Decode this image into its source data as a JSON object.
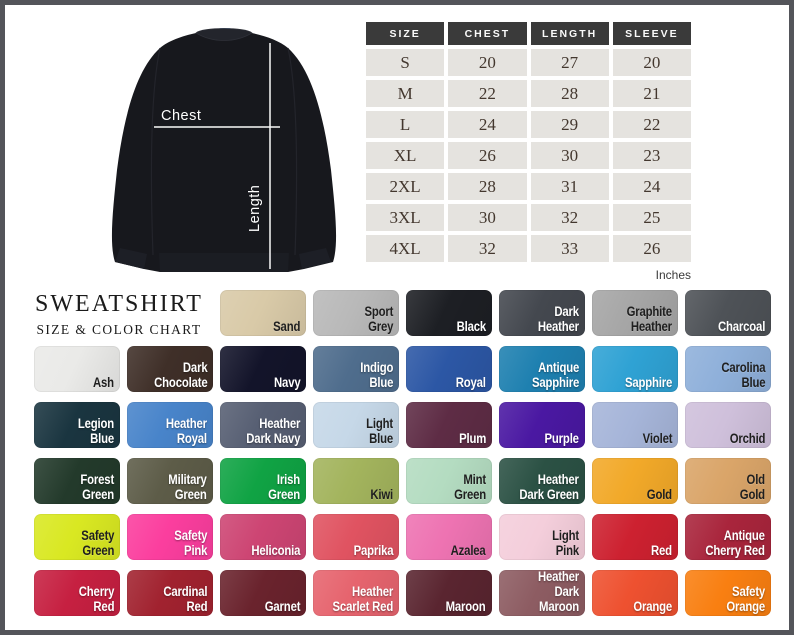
{
  "frame": {
    "border_color": "#54555a"
  },
  "title": {
    "line1": "SWEATSHIRT",
    "line2": "SIZE & COLOR CHART"
  },
  "diagram": {
    "chest_label": "Chest",
    "length_label": "Length"
  },
  "size_chart": {
    "headers": [
      "SIZE",
      "CHEST",
      "LENGTH",
      "SLEEVE"
    ],
    "rows": [
      [
        "S",
        "20",
        "27",
        "20"
      ],
      [
        "M",
        "22",
        "28",
        "21"
      ],
      [
        "L",
        "24",
        "29",
        "22"
      ],
      [
        "XL",
        "26",
        "30",
        "23"
      ],
      [
        "2XL",
        "28",
        "31",
        "24"
      ],
      [
        "3XL",
        "30",
        "32",
        "25"
      ],
      [
        "4XL",
        "32",
        "33",
        "26"
      ]
    ],
    "unit_label": "Inches",
    "header_bg": "#3a3a3a",
    "cell_bg": "#e5e3df"
  },
  "color_chart": {
    "rows": [
      {
        "offset": 2,
        "swatches": [
          {
            "name": "Sand",
            "lines": [
              "Sand"
            ],
            "hex": "#d9caa8",
            "text": "dark"
          },
          {
            "name": "Sport Grey",
            "lines": [
              "Sport",
              "Grey"
            ],
            "hex": "#b9b9b9",
            "text": "dark"
          },
          {
            "name": "Black",
            "lines": [
              "Black"
            ],
            "hex": "#1d1f24",
            "text": "light"
          },
          {
            "name": "Dark Heather",
            "lines": [
              "Dark",
              "Heather"
            ],
            "hex": "#44484f",
            "text": "light"
          },
          {
            "name": "Graphite Heather",
            "lines": [
              "Graphite",
              "Heather"
            ],
            "hex": "#a6a6a6",
            "text": "dark"
          },
          {
            "name": "Charcoal",
            "lines": [
              "Charcoal"
            ],
            "hex": "#4e5257",
            "text": "light"
          }
        ]
      },
      {
        "offset": 0,
        "swatches": [
          {
            "name": "Ash",
            "lines": [
              "Ash"
            ],
            "hex": "#eaeae8",
            "text": "dark"
          },
          {
            "name": "Dark Chocolate",
            "lines": [
              "Dark",
              "Chocolate"
            ],
            "hex": "#3f2f28",
            "text": "light"
          },
          {
            "name": "Navy",
            "lines": [
              "Navy"
            ],
            "hex": "#13142a",
            "text": "light"
          },
          {
            "name": "Indigo Blue",
            "lines": [
              "Indigo",
              "Blue"
            ],
            "hex": "#4f6d8d",
            "text": "light"
          },
          {
            "name": "Royal",
            "lines": [
              "Royal"
            ],
            "hex": "#2c57a5",
            "text": "light"
          },
          {
            "name": "Antique Sapphire",
            "lines": [
              "Antique",
              "Sapphire"
            ],
            "hex": "#1e80b0",
            "text": "light"
          },
          {
            "name": "Sapphire",
            "lines": [
              "Sapphire"
            ],
            "hex": "#2fa2d4",
            "text": "light"
          },
          {
            "name": "Carolina Blue",
            "lines": [
              "Carolina",
              "Blue"
            ],
            "hex": "#8fb0da",
            "text": "dark"
          }
        ]
      },
      {
        "offset": 0,
        "swatches": [
          {
            "name": "Legion Blue",
            "lines": [
              "Legion",
              "Blue"
            ],
            "hex": "#1a3540",
            "text": "light"
          },
          {
            "name": "Heather Royal",
            "lines": [
              "Heather",
              "Royal"
            ],
            "hex": "#4884ca",
            "text": "light"
          },
          {
            "name": "Heather Dark Navy",
            "lines": [
              "Heather",
              "Dark Navy"
            ],
            "hex": "#575f73",
            "text": "light"
          },
          {
            "name": "Light Blue",
            "lines": [
              "Light",
              "Blue"
            ],
            "hex": "#c6d8e8",
            "text": "dark"
          },
          {
            "name": "Plum",
            "lines": [
              "Plum"
            ],
            "hex": "#5e2c45",
            "text": "light"
          },
          {
            "name": "Purple",
            "lines": [
              "Purple"
            ],
            "hex": "#4a18a2",
            "text": "light"
          },
          {
            "name": "Violet",
            "lines": [
              "Violet"
            ],
            "hex": "#a6b5d9",
            "text": "dark"
          },
          {
            "name": "Orchid",
            "lines": [
              "Orchid"
            ],
            "hex": "#cfc0db",
            "text": "dark"
          }
        ]
      },
      {
        "offset": 0,
        "swatches": [
          {
            "name": "Forest Green",
            "lines": [
              "Forest",
              "Green"
            ],
            "hex": "#233a2b",
            "text": "light"
          },
          {
            "name": "Military Green",
            "lines": [
              "Military",
              "Green"
            ],
            "hex": "#5d5c48",
            "text": "light"
          },
          {
            "name": "Irish Green",
            "lines": [
              "Irish",
              "Green"
            ],
            "hex": "#10a344",
            "text": "light"
          },
          {
            "name": "Kiwi",
            "lines": [
              "Kiwi"
            ],
            "hex": "#a3b45d",
            "text": "dark"
          },
          {
            "name": "Mint Green",
            "lines": [
              "Mint",
              "Green"
            ],
            "hex": "#b4dcc1",
            "text": "dark"
          },
          {
            "name": "Heather Dark Green",
            "lines": [
              "Heather",
              "Dark Green"
            ],
            "hex": "#2b5144",
            "text": "light"
          },
          {
            "name": "Gold",
            "lines": [
              "Gold"
            ],
            "hex": "#f2a929",
            "text": "dark"
          },
          {
            "name": "Old Gold",
            "lines": [
              "Old",
              "Gold"
            ],
            "hex": "#daa569",
            "text": "dark"
          }
        ]
      },
      {
        "offset": 0,
        "swatches": [
          {
            "name": "Safety Green",
            "lines": [
              "Safety",
              "Green"
            ],
            "hex": "#d9e822",
            "text": "dark"
          },
          {
            "name": "Safety Pink",
            "lines": [
              "Safety",
              "Pink"
            ],
            "hex": "#fb3e9e",
            "text": "light"
          },
          {
            "name": "Heliconia",
            "lines": [
              "Heliconia"
            ],
            "hex": "#cd4573",
            "text": "light"
          },
          {
            "name": "Paprika",
            "lines": [
              "Paprika"
            ],
            "hex": "#e05361",
            "text": "light"
          },
          {
            "name": "Azalea",
            "lines": [
              "Azalea"
            ],
            "hex": "#ee73b2",
            "text": "dark"
          },
          {
            "name": "Light Pink",
            "lines": [
              "Light",
              "Pink"
            ],
            "hex": "#f4cedb",
            "text": "dark"
          },
          {
            "name": "Red",
            "lines": [
              "Red"
            ],
            "hex": "#cd2130",
            "text": "light"
          },
          {
            "name": "Antique Cherry Red",
            "lines": [
              "Antique",
              "Cherry Red"
            ],
            "hex": "#a9253c",
            "text": "light"
          }
        ]
      },
      {
        "offset": 0,
        "swatches": [
          {
            "name": "Cherry Red",
            "lines": [
              "Cherry",
              "Red"
            ],
            "hex": "#c62041",
            "text": "light"
          },
          {
            "name": "Cardinal Red",
            "lines": [
              "Cardinal",
              "Red"
            ],
            "hex": "#a1222f",
            "text": "light"
          },
          {
            "name": "Garnet",
            "lines": [
              "Garnet"
            ],
            "hex": "#6a232d",
            "text": "light"
          },
          {
            "name": "Heather Scarlet Red",
            "lines": [
              "Heather",
              "Scarlet Red"
            ],
            "hex": "#e6646e",
            "text": "light"
          },
          {
            "name": "Maroon",
            "lines": [
              "Maroon"
            ],
            "hex": "#5a2530",
            "text": "light"
          },
          {
            "name": "Heather Dark Maroon",
            "lines": [
              "Heather",
              "Dark Maroon"
            ],
            "hex": "#8d5c62",
            "text": "light"
          },
          {
            "name": "Orange",
            "lines": [
              "Orange"
            ],
            "hex": "#ee5130",
            "text": "light"
          },
          {
            "name": "Safety Orange",
            "lines": [
              "Safety",
              "Orange"
            ],
            "hex": "#f97f11",
            "text": "light"
          }
        ]
      }
    ]
  },
  "chart_data": [
    {
      "type": "table",
      "title": "Sweatshirt size chart",
      "unit": "Inches",
      "columns": [
        "SIZE",
        "CHEST",
        "LENGTH",
        "SLEEVE"
      ],
      "rows": [
        [
          "S",
          20,
          27,
          20
        ],
        [
          "M",
          22,
          28,
          21
        ],
        [
          "L",
          24,
          29,
          22
        ],
        [
          "XL",
          26,
          30,
          23
        ],
        [
          "2XL",
          28,
          31,
          24
        ],
        [
          "3XL",
          30,
          32,
          25
        ],
        [
          "4XL",
          32,
          33,
          26
        ]
      ]
    },
    {
      "type": "table",
      "title": "Sweatshirt color chart",
      "values": [
        "Sand",
        "Sport Grey",
        "Black",
        "Dark Heather",
        "Graphite Heather",
        "Charcoal",
        "Ash",
        "Dark Chocolate",
        "Navy",
        "Indigo Blue",
        "Royal",
        "Antique Sapphire",
        "Sapphire",
        "Carolina Blue",
        "Legion Blue",
        "Heather Royal",
        "Heather Dark Navy",
        "Light Blue",
        "Plum",
        "Purple",
        "Violet",
        "Orchid",
        "Forest Green",
        "Military Green",
        "Irish Green",
        "Kiwi",
        "Mint Green",
        "Heather Dark Green",
        "Gold",
        "Old Gold",
        "Safety Green",
        "Safety Pink",
        "Heliconia",
        "Paprika",
        "Azalea",
        "Light Pink",
        "Red",
        "Antique Cherry Red",
        "Cherry Red",
        "Cardinal Red",
        "Garnet",
        "Heather Scarlet Red",
        "Maroon",
        "Heather Dark Maroon",
        "Orange",
        "Safety Orange"
      ]
    }
  ]
}
